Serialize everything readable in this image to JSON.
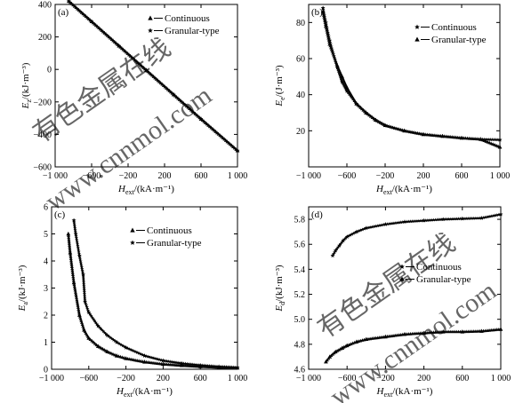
{
  "chart_data": [
    {
      "id": "a",
      "type": "line",
      "panel_label": "(a)",
      "xlabel": "H_ext/(kA·m⁻¹)",
      "ylabel": "E_z/(kJ·m⁻³)",
      "xlim": [
        -1000,
        1000
      ],
      "ylim": [
        -600,
        400
      ],
      "xticks": [
        -1000,
        -600,
        -200,
        200,
        600,
        1000
      ],
      "yticks": [
        -600,
        -400,
        -200,
        0,
        200,
        400
      ],
      "xtick_labels": [
        "−1 000",
        "−600",
        "−200",
        "200",
        "600",
        "1 000"
      ],
      "ytick_labels": [
        "−600",
        "−400",
        "−200",
        "0",
        "200",
        "400"
      ],
      "legend_position": "top-right",
      "series": [
        {
          "name": "Continuous",
          "marker": "triangle",
          "x": [
            -850,
            -600,
            -300,
            0,
            300,
            600,
            1000
          ],
          "y": [
            420,
            295,
            145,
            -5,
            -155,
            -305,
            -500
          ]
        },
        {
          "name": "Granular-type",
          "marker": "star",
          "x": [
            -850,
            -600,
            -300,
            0,
            300,
            600,
            1000
          ],
          "y": [
            420,
            295,
            145,
            -5,
            -155,
            -305,
            -500
          ]
        }
      ]
    },
    {
      "id": "b",
      "type": "line",
      "panel_label": "(b)",
      "xlabel": "H_ext/(kA·m⁻¹)",
      "ylabel": "E_e/(J·m⁻³)",
      "xlim": [
        -1000,
        1000
      ],
      "ylim": [
        0,
        90
      ],
      "xticks": [
        -1000,
        -600,
        -200,
        200,
        600,
        1000
      ],
      "yticks": [
        20,
        40,
        60,
        80
      ],
      "xtick_labels": [
        "−1 000",
        "−600",
        "−200",
        "200",
        "600",
        "1 000"
      ],
      "ytick_labels": [
        "20",
        "40",
        "60",
        "80"
      ],
      "legend_position": "top-right",
      "series": [
        {
          "name": "Continuous",
          "marker": "star",
          "x": [
            -850,
            -820,
            -780,
            -700,
            -650,
            -600,
            -500,
            -400,
            -300,
            -200,
            0,
            200,
            400,
            600,
            800,
            1000
          ],
          "y": [
            88,
            80,
            70,
            55,
            47,
            42,
            35,
            30,
            26,
            23,
            20,
            18,
            17,
            16,
            15.3,
            15
          ]
        },
        {
          "name": "Granular-type",
          "marker": "triangle",
          "x": [
            -850,
            -820,
            -780,
            -700,
            -650,
            -600,
            -500,
            -400,
            -300,
            -200,
            0,
            200,
            400,
            600,
            800,
            1000
          ],
          "y": [
            86,
            78,
            68,
            56,
            50,
            44,
            35,
            30,
            26,
            23,
            20,
            18,
            17,
            16,
            15.3,
            11
          ]
        }
      ]
    },
    {
      "id": "c",
      "type": "line",
      "panel_label": "(c)",
      "xlabel": "H_ext/(kA·m⁻¹)",
      "ylabel": "E_a/(kJ·m⁻³)",
      "xlim": [
        -1000,
        1000
      ],
      "ylim": [
        0,
        6
      ],
      "xticks": [
        -1000,
        -600,
        -200,
        200,
        600,
        1000
      ],
      "yticks": [
        0,
        1,
        2,
        3,
        4,
        5,
        6
      ],
      "xtick_labels": [
        "−1 000",
        "−600",
        "−200",
        "200",
        "600",
        "1 000"
      ],
      "ytick_labels": [
        "0",
        "1",
        "2",
        "3",
        "4",
        "5",
        "6"
      ],
      "legend_position": "top-right",
      "series": [
        {
          "name": "Continuous",
          "marker": "triangle",
          "x": [
            -820,
            -800,
            -760,
            -700,
            -650,
            -600,
            -500,
            -400,
            -300,
            -200,
            0,
            200,
            400,
            600,
            800,
            1000
          ],
          "y": [
            5.0,
            4.3,
            3.2,
            2.0,
            1.45,
            1.15,
            0.85,
            0.65,
            0.5,
            0.4,
            0.27,
            0.19,
            0.14,
            0.1,
            0.07,
            0.05
          ]
        },
        {
          "name": "Granular-type",
          "marker": "star",
          "x": [
            -760,
            -740,
            -700,
            -660,
            -640,
            -600,
            -500,
            -400,
            -300,
            -200,
            0,
            200,
            400,
            600,
            800,
            1000
          ],
          "y": [
            5.5,
            5.0,
            4.2,
            3.5,
            2.5,
            2.1,
            1.6,
            1.25,
            1.0,
            0.8,
            0.5,
            0.32,
            0.22,
            0.15,
            0.1,
            0.07
          ]
        }
      ]
    },
    {
      "id": "d",
      "type": "line",
      "panel_label": "(d)",
      "xlabel": "H_ext/(kA·m⁻¹)",
      "ylabel": "E_d/(kJ·m⁻³)",
      "xlim": [
        -1000,
        1000
      ],
      "ylim": [
        4.6,
        5.9
      ],
      "xticks": [
        -1000,
        -600,
        -200,
        200,
        600,
        1000
      ],
      "yticks": [
        4.6,
        4.8,
        5.0,
        5.2,
        5.4,
        5.6,
        5.8
      ],
      "xtick_labels": [
        "−1 000",
        "−600",
        "−200",
        "200",
        "600",
        "1 000"
      ],
      "ytick_labels": [
        "4.6",
        "4.8",
        "5.0",
        "5.2",
        "5.4",
        "5.6",
        "5.8"
      ],
      "legend_position": "center-right",
      "series": [
        {
          "name": "Continuous",
          "marker": "star",
          "x": [
            -750,
            -720,
            -680,
            -640,
            -600,
            -500,
            -400,
            -200,
            0,
            200,
            400,
            600,
            800,
            1000
          ],
          "y": [
            5.51,
            5.55,
            5.59,
            5.63,
            5.66,
            5.7,
            5.73,
            5.76,
            5.78,
            5.79,
            5.8,
            5.805,
            5.81,
            5.84
          ]
        },
        {
          "name": "Granular-type",
          "marker": "triangle",
          "x": [
            -820,
            -780,
            -720,
            -650,
            -600,
            -500,
            -400,
            -200,
            0,
            200,
            400,
            600,
            800,
            1000
          ],
          "y": [
            4.66,
            4.7,
            4.74,
            4.77,
            4.79,
            4.82,
            4.84,
            4.86,
            4.88,
            4.89,
            4.9,
            4.9,
            4.905,
            4.92
          ]
        }
      ]
    }
  ],
  "watermarks": [
    {
      "text": "有色金属在线"
    },
    {
      "text": "www.cnnmol.com"
    },
    {
      "text": "有色金属在线"
    },
    {
      "text": "www.cnnmol.com"
    }
  ]
}
